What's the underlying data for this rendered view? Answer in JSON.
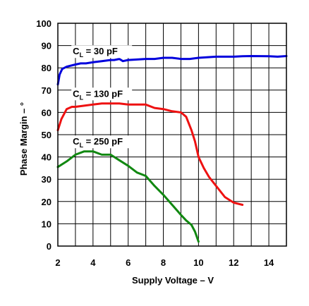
{
  "chart_data": {
    "type": "line",
    "title": "",
    "xlabel": "Supply Voltage – V",
    "ylabel": "Phase Margin – °",
    "xlim": [
      2,
      15
    ],
    "ylim": [
      0,
      100
    ],
    "x_ticks": [
      2,
      4,
      6,
      8,
      10,
      12,
      14
    ],
    "y_ticks": [
      0,
      10,
      20,
      30,
      40,
      50,
      60,
      70,
      80,
      90,
      100
    ],
    "grid": true,
    "series": [
      {
        "name": "C_L = 30 pF",
        "label_main": "C",
        "label_sub": "L",
        "label_rest": " = 30 pF",
        "color": "#0000dd",
        "x": [
          2,
          2.1,
          2.25,
          2.5,
          3,
          3.3,
          3.6,
          4,
          4.5,
          5,
          5.2,
          5.5,
          5.7,
          6,
          7,
          7.5,
          8,
          8.5,
          9,
          9.5,
          10,
          11,
          12,
          12.5,
          13,
          14,
          14.5,
          15
        ],
        "y": [
          72.5,
          77,
          79.5,
          80.5,
          81.5,
          82,
          82,
          82.5,
          83,
          83.5,
          83.5,
          84,
          83,
          83.5,
          84,
          84,
          84.5,
          84.5,
          84,
          84,
          84.5,
          85,
          85,
          85.2,
          85.3,
          85.2,
          85,
          85.3
        ]
      },
      {
        "name": "C_L = 130 pF",
        "label_main": "C",
        "label_sub": "L",
        "label_rest": " = 130 pF",
        "color": "#ee1111",
        "x": [
          2,
          2.2,
          2.5,
          2.8,
          3,
          3.5,
          4,
          4.5,
          5,
          5.5,
          6,
          6.5,
          7,
          7.5,
          8,
          8.5,
          9,
          9.3,
          9.6,
          9.8,
          10,
          10.3,
          10.6,
          11,
          11.5,
          12,
          12.5
        ],
        "y": [
          52,
          57,
          61.5,
          62.5,
          62.5,
          63,
          63.5,
          64,
          64,
          64,
          63.5,
          63.5,
          63.5,
          62,
          61.5,
          60.5,
          60,
          58,
          52,
          47,
          40,
          35,
          31,
          27,
          22,
          19.5,
          18.5
        ]
      },
      {
        "name": "C_L = 250 pF",
        "label_main": "C",
        "label_sub": "L",
        "label_rest": " = 250 pF",
        "color": "#118811",
        "x": [
          2,
          2.5,
          3,
          3.5,
          4,
          4.5,
          5,
          5.5,
          6,
          6.5,
          7,
          7.5,
          8,
          8.5,
          9,
          9.3,
          9.6,
          9.8,
          10
        ],
        "y": [
          35.5,
          38,
          41,
          42.5,
          42.5,
          41,
          41,
          38.5,
          36,
          33,
          31.5,
          27,
          23,
          18.5,
          14,
          11.5,
          9.5,
          6.5,
          2
        ]
      }
    ]
  }
}
